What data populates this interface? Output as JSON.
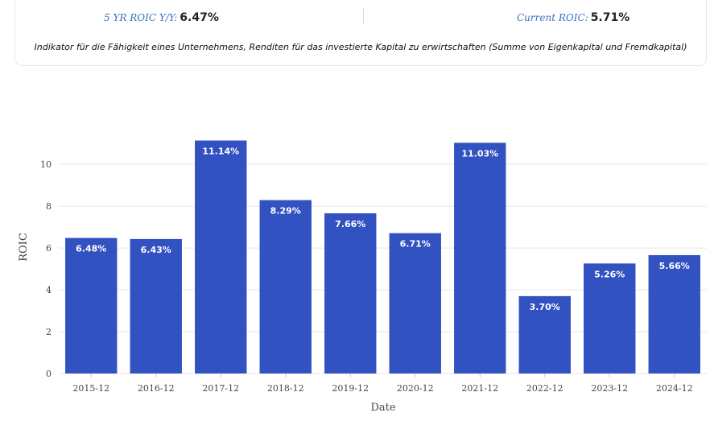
{
  "summary": {
    "left_label": "5 YR ROIC Y/Y:",
    "left_value": "6.47%",
    "right_label": "Current ROIC:",
    "right_value": "5.71%",
    "description": "Indikator für die Fähigkeit eines Unternehmens, Renditen für das investierte Kapital zu erwirtschaften (Summe von Eigenkapital und Fremdkapital)"
  },
  "colors": {
    "bar": "#3352c1",
    "grid": "#e6e6e6"
  },
  "chart_data": {
    "type": "bar",
    "categories": [
      "2015-12",
      "2016-12",
      "2017-12",
      "2018-12",
      "2019-12",
      "2020-12",
      "2021-12",
      "2022-12",
      "2023-12",
      "2024-12"
    ],
    "values": [
      6.48,
      6.43,
      11.14,
      8.29,
      7.66,
      6.71,
      11.03,
      3.7,
      5.26,
      5.66
    ],
    "data_labels": [
      "6.48%",
      "6.43%",
      "11.14%",
      "8.29%",
      "7.66%",
      "6.71%",
      "11.03%",
      "3.70%",
      "5.26%",
      "5.66%"
    ],
    "xlabel": "Date",
    "ylabel": "ROIC",
    "ylim": [
      0,
      11.7
    ],
    "yticks": [
      0,
      2,
      4,
      6,
      8,
      10
    ],
    "grid": true
  }
}
